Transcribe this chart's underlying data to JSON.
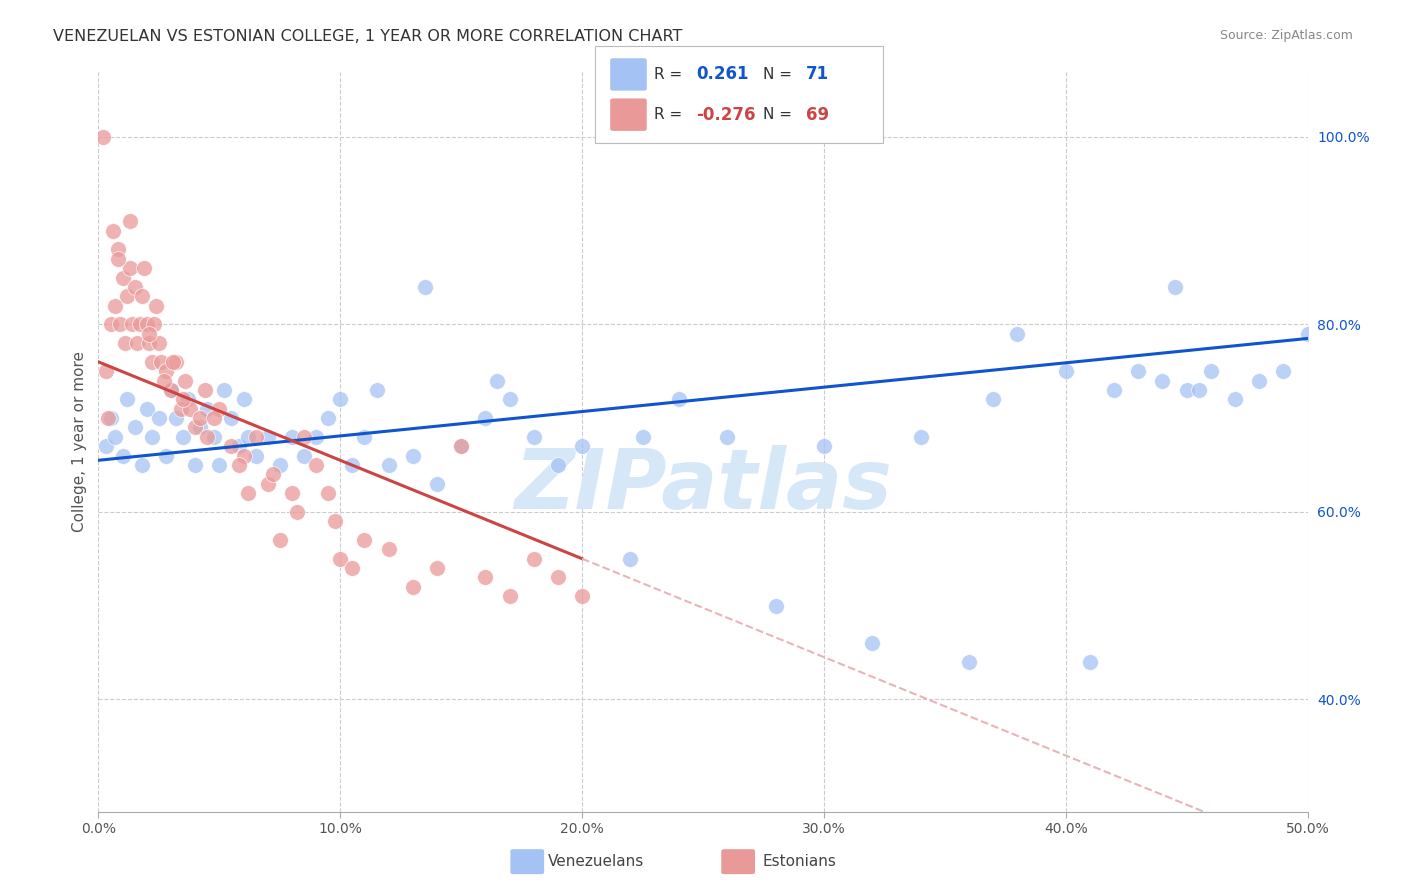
{
  "title": "VENEZUELAN VS ESTONIAN COLLEGE, 1 YEAR OR MORE CORRELATION CHART",
  "source": "Source: ZipAtlas.com",
  "ylabel": "College, 1 year or more",
  "xlim": [
    0.0,
    50.0
  ],
  "ylim": [
    28.0,
    107.0
  ],
  "yticks": [
    40,
    60,
    80,
    100
  ],
  "xticks": [
    0,
    10,
    20,
    30,
    40,
    50
  ],
  "blue_color": "#a4c2f4",
  "pink_color": "#ea9999",
  "blue_line_color": "#1155cc",
  "pink_line_color": "#cc4444",
  "pink_dash_color": "#e8b4b8",
  "watermark_color": "#d6e8f7",
  "background_color": "#ffffff",
  "grid_color": "#cccccc",
  "venezuelan_x": [
    0.3,
    0.5,
    0.7,
    1.0,
    1.2,
    1.5,
    1.8,
    2.0,
    2.2,
    2.5,
    2.8,
    3.0,
    3.2,
    3.5,
    3.7,
    4.0,
    4.2,
    4.5,
    4.8,
    5.0,
    5.2,
    5.5,
    5.8,
    6.0,
    6.2,
    6.5,
    7.0,
    7.5,
    8.0,
    8.5,
    9.0,
    9.5,
    10.0,
    10.5,
    11.0,
    11.5,
    12.0,
    13.0,
    14.0,
    15.0,
    16.0,
    17.0,
    18.0,
    19.0,
    20.0,
    22.0,
    24.0,
    26.0,
    28.0,
    30.0,
    32.0,
    34.0,
    36.0,
    37.0,
    38.0,
    40.0,
    42.0,
    44.0,
    45.0,
    46.0,
    47.0,
    48.0,
    49.0,
    50.0,
    44.5,
    45.5,
    43.0,
    41.0,
    22.5,
    16.5,
    13.5
  ],
  "venezuelan_y": [
    67.0,
    70.0,
    68.0,
    66.0,
    72.0,
    69.0,
    65.0,
    71.0,
    68.0,
    70.0,
    66.0,
    73.0,
    70.0,
    68.0,
    72.0,
    65.0,
    69.0,
    71.0,
    68.0,
    65.0,
    73.0,
    70.0,
    67.0,
    72.0,
    68.0,
    66.0,
    68.0,
    65.0,
    68.0,
    66.0,
    68.0,
    70.0,
    72.0,
    65.0,
    68.0,
    73.0,
    65.0,
    66.0,
    63.0,
    67.0,
    70.0,
    72.0,
    68.0,
    65.0,
    67.0,
    55.0,
    72.0,
    68.0,
    50.0,
    67.0,
    46.0,
    68.0,
    44.0,
    72.0,
    79.0,
    75.0,
    73.0,
    74.0,
    73.0,
    75.0,
    72.0,
    74.0,
    75.0,
    79.0,
    84.0,
    73.0,
    75.0,
    44.0,
    68.0,
    74.0,
    84.0
  ],
  "estonian_x": [
    0.2,
    0.3,
    0.4,
    0.5,
    0.6,
    0.7,
    0.8,
    0.9,
    1.0,
    1.1,
    1.2,
    1.3,
    1.4,
    1.5,
    1.6,
    1.7,
    1.8,
    1.9,
    2.0,
    2.1,
    2.2,
    2.3,
    2.4,
    2.5,
    2.6,
    2.8,
    3.0,
    3.2,
    3.4,
    3.6,
    3.8,
    4.0,
    4.2,
    4.5,
    5.0,
    5.5,
    6.0,
    6.5,
    7.0,
    7.5,
    8.0,
    8.5,
    9.0,
    9.5,
    10.0,
    10.5,
    11.0,
    12.0,
    13.0,
    14.0,
    15.0,
    16.0,
    17.0,
    18.0,
    19.0,
    20.0,
    3.5,
    4.8,
    5.8,
    7.2,
    8.2,
    2.7,
    1.3,
    0.8,
    2.1,
    3.1,
    4.4,
    6.2,
    9.8
  ],
  "estonian_y": [
    100.0,
    75.0,
    70.0,
    80.0,
    90.0,
    82.0,
    88.0,
    80.0,
    85.0,
    78.0,
    83.0,
    86.0,
    80.0,
    84.0,
    78.0,
    80.0,
    83.0,
    86.0,
    80.0,
    78.0,
    76.0,
    80.0,
    82.0,
    78.0,
    76.0,
    75.0,
    73.0,
    76.0,
    71.0,
    74.0,
    71.0,
    69.0,
    70.0,
    68.0,
    71.0,
    67.0,
    66.0,
    68.0,
    63.0,
    57.0,
    62.0,
    68.0,
    65.0,
    62.0,
    55.0,
    54.0,
    57.0,
    56.0,
    52.0,
    54.0,
    67.0,
    53.0,
    51.0,
    55.0,
    53.0,
    51.0,
    72.0,
    70.0,
    65.0,
    64.0,
    60.0,
    74.0,
    91.0,
    87.0,
    79.0,
    76.0,
    73.0,
    62.0,
    59.0
  ],
  "ven_line_x0": 0.0,
  "ven_line_x1": 50.0,
  "ven_line_y0": 65.5,
  "ven_line_y1": 78.5,
  "est_line_x0": 0.0,
  "est_line_x1": 20.0,
  "est_line_y0": 76.0,
  "est_line_y1": 55.0,
  "est_dash_x0": 20.0,
  "est_dash_x1": 50.0,
  "pink_line_solid_end": 20.0
}
